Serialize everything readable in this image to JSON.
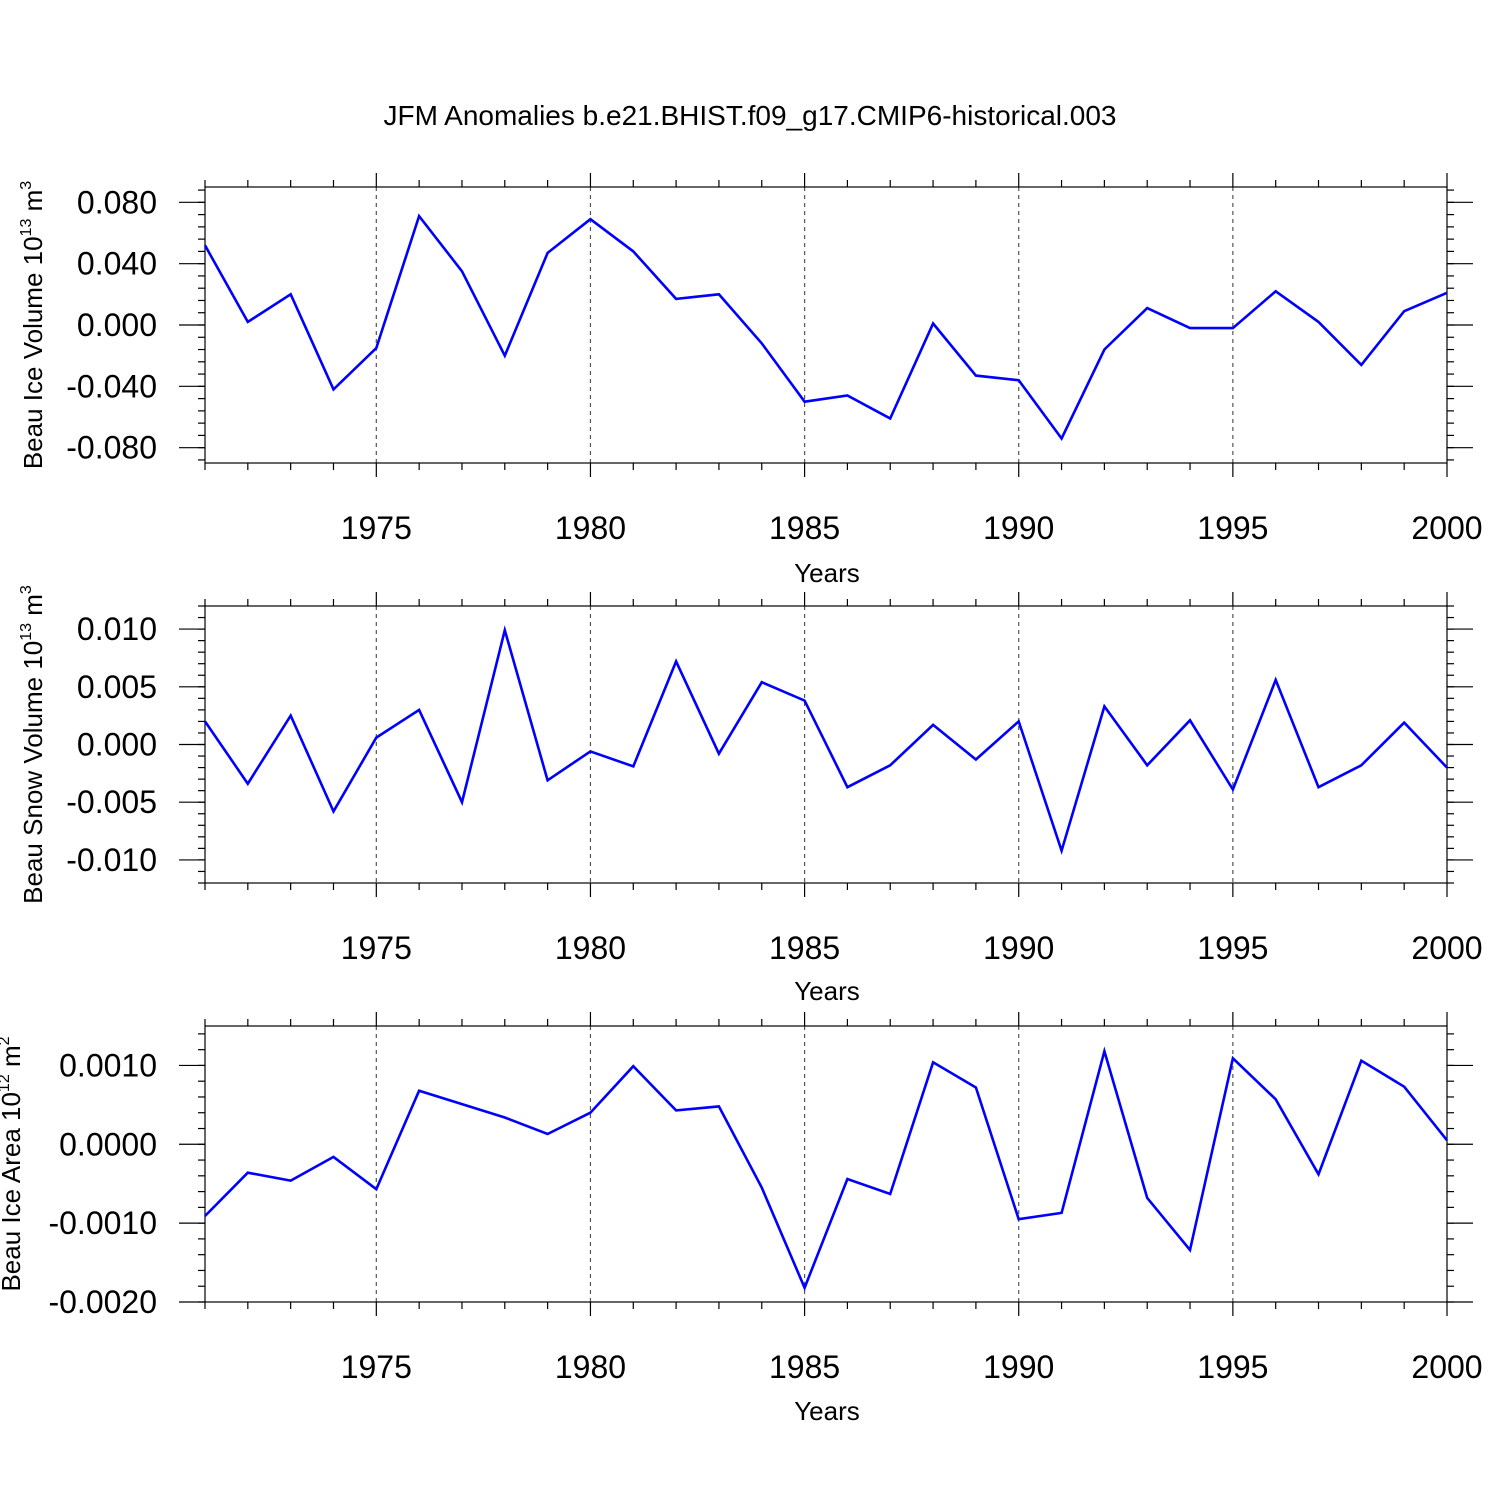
{
  "chart_data": {
    "title": "JFM Anomalies b.e21.BHIST.f09_g17.CMIP6-historical.003",
    "x": [
      1971,
      1972,
      1973,
      1974,
      1975,
      1976,
      1977,
      1978,
      1979,
      1980,
      1981,
      1982,
      1983,
      1984,
      1985,
      1986,
      1987,
      1988,
      1989,
      1990,
      1991,
      1992,
      1993,
      1994,
      1995,
      1996,
      1997,
      1998,
      1999,
      2000
    ],
    "xlim": [
      1971,
      2000
    ],
    "xticks": [
      1975,
      1980,
      1985,
      1990,
      1995,
      2000
    ],
    "xtick_labels": [
      "1975",
      "1980",
      "1985",
      "1990",
      "1995",
      "2000"
    ],
    "charts": [
      {
        "type": "line",
        "ylabel_main": "Beau Ice Volume 10",
        "ylabel_exp": "13",
        "ylabel_unit": " m",
        "ylabel_unit_exp": "3",
        "xlabel": "Years",
        "ylim": [
          -0.09,
          0.09
        ],
        "yticks": [
          0.08,
          0.04,
          0.0,
          -0.04,
          -0.08
        ],
        "ytick_labels": [
          "0.080",
          "0.040",
          "0.000",
          "-0.040",
          "-0.080"
        ],
        "grid_x": true,
        "series": [
          {
            "name": "Beau Ice Volume",
            "color": "#0000ff",
            "values": [
              0.052,
              0.002,
              0.02,
              -0.042,
              -0.015,
              0.071,
              0.035,
              -0.02,
              0.047,
              0.069,
              0.048,
              0.017,
              0.02,
              -0.012,
              -0.05,
              -0.046,
              -0.061,
              0.001,
              -0.033,
              -0.036,
              -0.074,
              -0.016,
              0.011,
              -0.002,
              -0.002,
              0.022,
              0.002,
              -0.026,
              0.009,
              0.021
            ]
          }
        ]
      },
      {
        "type": "line",
        "ylabel_main": "Beau Snow Volume 10",
        "ylabel_exp": "13",
        "ylabel_unit": " m",
        "ylabel_unit_exp": "3",
        "xlabel": "Years",
        "ylim": [
          -0.012,
          0.012
        ],
        "yticks": [
          0.01,
          0.005,
          0.0,
          -0.005,
          -0.01
        ],
        "ytick_labels": [
          "0.010",
          "0.005",
          "0.000",
          "-0.005",
          "-0.010"
        ],
        "grid_x": true,
        "series": [
          {
            "name": "Beau Snow Volume",
            "color": "#0000ff",
            "values": [
              0.002,
              -0.0034,
              0.0025,
              -0.0058,
              0.0006,
              0.003,
              -0.005,
              0.0099,
              -0.0031,
              -0.0006,
              -0.0019,
              0.0072,
              -0.0008,
              0.0054,
              0.0038,
              -0.0037,
              -0.0018,
              0.0017,
              -0.0013,
              0.002,
              -0.0092,
              0.0033,
              -0.0018,
              0.0021,
              -0.0039,
              0.0056,
              -0.0037,
              -0.0018,
              0.0019,
              -0.002
            ]
          }
        ]
      },
      {
        "type": "line",
        "ylabel_main": "Beau Ice Area 10",
        "ylabel_exp": "12",
        "ylabel_unit": " m",
        "ylabel_unit_exp": "2",
        "xlabel": "Years",
        "ylim": [
          -0.002,
          0.0015
        ],
        "yticks": [
          0.001,
          0.0,
          -0.001,
          -0.002
        ],
        "ytick_labels": [
          "0.0010",
          "0.0000",
          "-0.0010",
          "-0.0020"
        ],
        "grid_x": true,
        "series": [
          {
            "name": "Beau Ice Area",
            "color": "#0000ff",
            "values": [
              -0.00091,
              -0.00036,
              -0.00046,
              -0.00016,
              -0.00057,
              0.00068,
              0.00051,
              0.00034,
              0.00013,
              0.0004,
              0.00099,
              0.00043,
              0.00048,
              -0.00055,
              -0.00182,
              -0.00044,
              -0.00063,
              0.00104,
              0.00072,
              -0.00095,
              -0.00087,
              0.00118,
              -0.00068,
              -0.00134,
              0.00109,
              0.00057,
              -0.00038,
              0.00106,
              0.00073,
              5e-05
            ]
          }
        ]
      }
    ]
  }
}
